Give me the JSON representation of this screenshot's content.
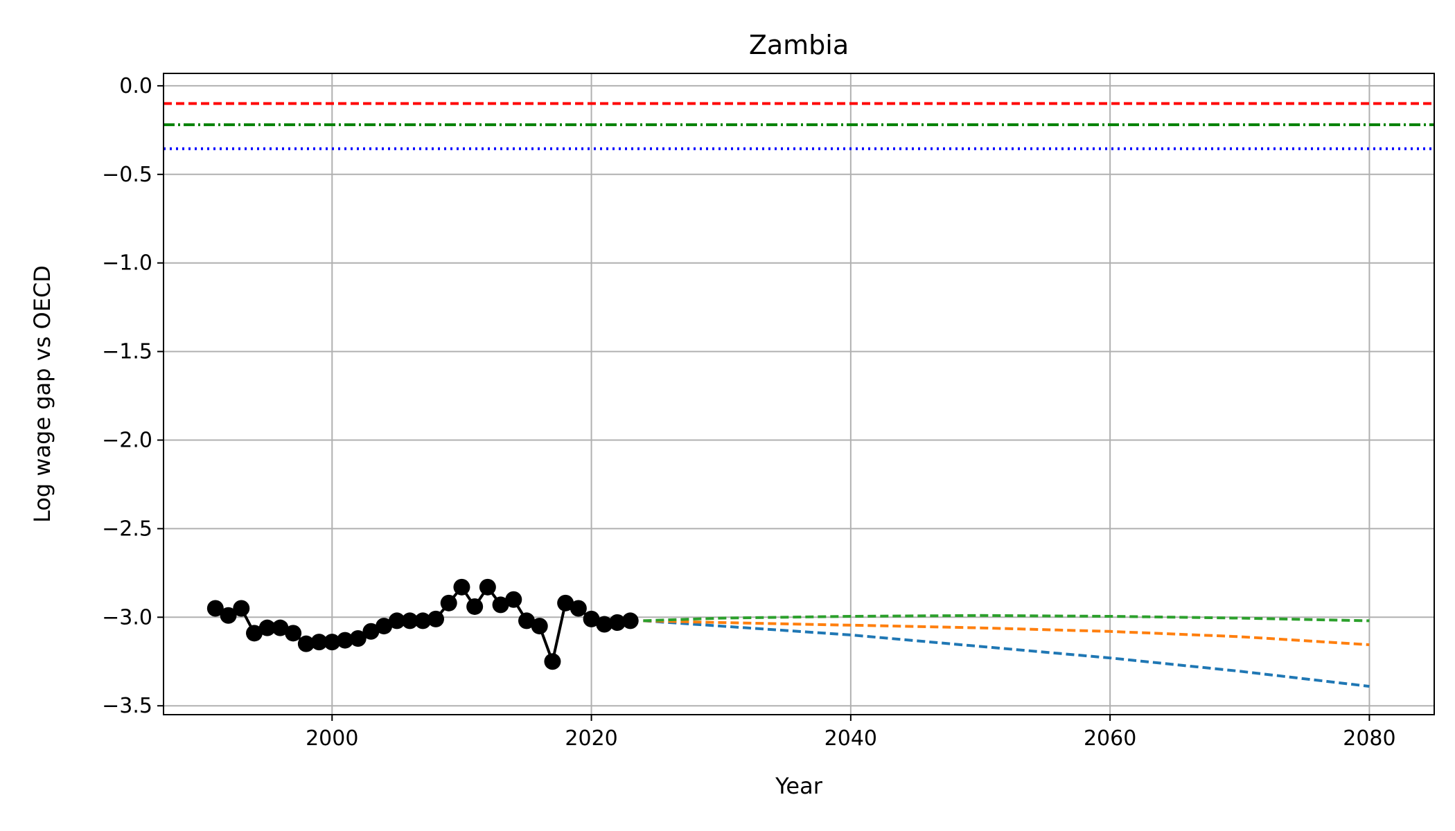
{
  "chart_data": {
    "type": "line",
    "title": "Zambia",
    "xlabel": "Year",
    "ylabel": "Log wage gap vs OECD",
    "xlim": [
      1987,
      2085
    ],
    "ylim": [
      -3.55,
      0.07
    ],
    "x_ticks": [
      2000,
      2020,
      2040,
      2060,
      2080
    ],
    "x_tick_labels": [
      "2000",
      "2020",
      "2040",
      "2060",
      "2080"
    ],
    "y_ticks": [
      0.0,
      -0.5,
      -1.0,
      -1.5,
      -2.0,
      -2.5,
      -3.0,
      -3.5
    ],
    "y_tick_labels": [
      "0.0",
      "−0.5",
      "−1.0",
      "−1.5",
      "−2.0",
      "−2.5",
      "−3.0",
      "−3.5"
    ],
    "grid": true,
    "legend": "none",
    "series": [
      {
        "style": "solid-markers",
        "color": "#000000",
        "x": [
          1991,
          1992,
          1993,
          1994,
          1995,
          1996,
          1997,
          1998,
          1999,
          2000,
          2001,
          2002,
          2003,
          2004,
          2005,
          2006,
          2007,
          2008,
          2009,
          2010,
          2011,
          2012,
          2013,
          2014,
          2015,
          2016,
          2017,
          2018,
          2019,
          2020,
          2021,
          2022,
          2023
        ],
        "y": [
          -2.95,
          -2.99,
          -2.95,
          -3.09,
          -3.06,
          -3.06,
          -3.09,
          -3.15,
          -3.14,
          -3.14,
          -3.13,
          -3.12,
          -3.08,
          -3.05,
          -3.02,
          -3.02,
          -3.02,
          -3.01,
          -2.92,
          -2.83,
          -2.94,
          -2.83,
          -2.93,
          -2.9,
          -3.02,
          -3.05,
          -3.25,
          -2.92,
          -2.95,
          -3.01,
          -3.04,
          -3.03,
          -3.02
        ]
      },
      {
        "style": "dashed",
        "color": "#1f77b4",
        "x": [
          2024,
          2030,
          2040,
          2050,
          2060,
          2070,
          2080
        ],
        "y": [
          -3.02,
          -3.05,
          -3.1,
          -3.165,
          -3.23,
          -3.305,
          -3.39
        ]
      },
      {
        "style": "dashed",
        "color": "#ff7f0e",
        "x": [
          2024,
          2030,
          2040,
          2050,
          2060,
          2070,
          2080
        ],
        "y": [
          -3.02,
          -3.03,
          -3.045,
          -3.06,
          -3.08,
          -3.11,
          -3.155
        ]
      },
      {
        "style": "dashed",
        "color": "#2ca02c",
        "x": [
          2024,
          2030,
          2040,
          2050,
          2060,
          2070,
          2080
        ],
        "y": [
          -3.02,
          -3.005,
          -2.995,
          -2.99,
          -2.995,
          -3.005,
          -3.02
        ]
      }
    ],
    "hlines": [
      {
        "y": -0.1,
        "color": "#ff0000",
        "style": "dashed"
      },
      {
        "y": -0.22,
        "color": "#008000",
        "style": "dashdot"
      },
      {
        "y": -0.355,
        "color": "#0000ff",
        "style": "dotted"
      }
    ]
  }
}
